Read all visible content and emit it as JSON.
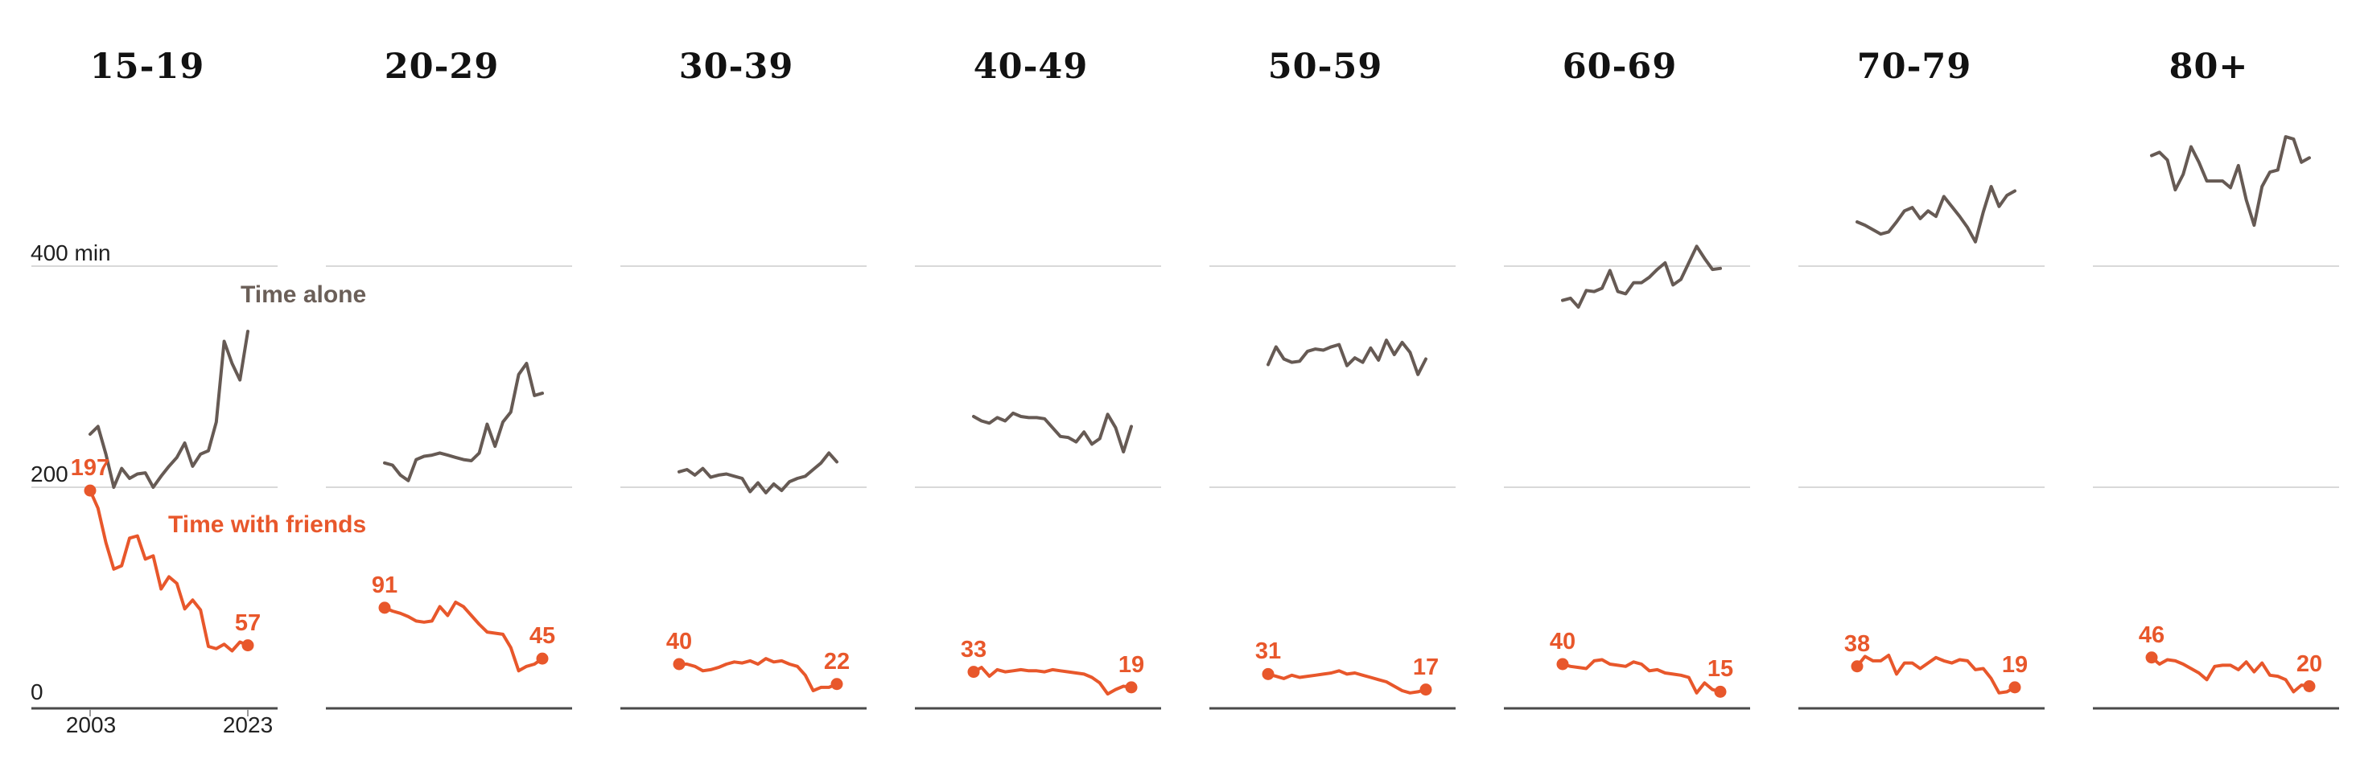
{
  "chart_data": {
    "type": "line",
    "layout_hint": "8 small-multiple panels by age group, shared y scale 0-400+ min, gridlines at 0/200/400, axis labels only on first panel, legend as inline series labels on first panel",
    "x": [
      2003,
      2004,
      2005,
      2006,
      2007,
      2008,
      2009,
      2010,
      2011,
      2012,
      2013,
      2014,
      2015,
      2016,
      2017,
      2018,
      2019,
      2020,
      2021,
      2022,
      2023
    ],
    "x_axis": {
      "start_label": "2003",
      "end_label": "2023"
    },
    "y_axis": {
      "top_label": "400 min",
      "mid_label": "200",
      "zero_label": "0",
      "gridlines": [
        400,
        200,
        0
      ],
      "ylim": [
        0,
        560
      ]
    },
    "series_labels": {
      "alone": "Time alone",
      "friends": "Time with friends"
    },
    "colors": {
      "friends": "#e8572b",
      "alone_line": "#665a54",
      "alone_label_text": "#6b5f58",
      "gridline": "#d9d9d9",
      "axis_line": "#4a4a4a",
      "tick": "#9a9a9a",
      "text": "#1f1f1f"
    },
    "panels": [
      {
        "title": "15-19",
        "alone": [
          248,
          255,
          230,
          200,
          217,
          208,
          212,
          213,
          200,
          210,
          219,
          227,
          240,
          219,
          230,
          233,
          259,
          332,
          312,
          297,
          341
        ],
        "friends": [
          197,
          181,
          150,
          126,
          129,
          154,
          156,
          135,
          138,
          108,
          119,
          113,
          90,
          98,
          89,
          56,
          54,
          58,
          52,
          60,
          57
        ],
        "friends_start_label": "197",
        "friends_end_label": "57"
      },
      {
        "title": "20-29",
        "alone": [
          222,
          220,
          211,
          206,
          225,
          228,
          229,
          231,
          229,
          227,
          225,
          224,
          231,
          257,
          237,
          259,
          268,
          302,
          312,
          283,
          285
        ],
        "friends": [
          91,
          88,
          86,
          83,
          79,
          78,
          79,
          92,
          84,
          96,
          92,
          84,
          76,
          69,
          68,
          67,
          55,
          34,
          38,
          40,
          45
        ],
        "friends_start_label": "91",
        "friends_end_label": "45"
      },
      {
        "title": "30-39",
        "alone": [
          214,
          216,
          211,
          217,
          209,
          211,
          212,
          210,
          208,
          196,
          204,
          195,
          203,
          197,
          205,
          208,
          210,
          216,
          222,
          231,
          223
        ],
        "friends": [
          40,
          40,
          38,
          34,
          35,
          37,
          40,
          42,
          41,
          43,
          40,
          45,
          42,
          43,
          40,
          38,
          30,
          16,
          19,
          19,
          22
        ],
        "friends_start_label": "40",
        "friends_end_label": "22"
      },
      {
        "title": "40-49",
        "alone": [
          264,
          260,
          258,
          263,
          260,
          267,
          264,
          263,
          263,
          262,
          254,
          246,
          245,
          241,
          250,
          239,
          244,
          266,
          254,
          232,
          255
        ],
        "friends": [
          33,
          37,
          29,
          35,
          33,
          34,
          35,
          34,
          34,
          33,
          35,
          34,
          33,
          32,
          31,
          28,
          23,
          13,
          17,
          20,
          19
        ],
        "friends_start_label": "33",
        "friends_end_label": "19"
      },
      {
        "title": "50-59",
        "alone": [
          311,
          327,
          316,
          313,
          314,
          323,
          325,
          324,
          327,
          329,
          310,
          317,
          313,
          326,
          315,
          333,
          320,
          331,
          322,
          302,
          316
        ],
        "friends": [
          31,
          29,
          27,
          30,
          28,
          29,
          30,
          31,
          32,
          34,
          31,
          32,
          30,
          28,
          26,
          24,
          20,
          16,
          14,
          15,
          17
        ],
        "friends_start_label": "31",
        "friends_end_label": "17"
      },
      {
        "title": "60-69",
        "alone": [
          369,
          371,
          363,
          378,
          377,
          380,
          396,
          377,
          375,
          385,
          385,
          390,
          397,
          403,
          383,
          388,
          403,
          418,
          407,
          397,
          398
        ],
        "friends": [
          40,
          38,
          37,
          36,
          43,
          44,
          40,
          39,
          38,
          42,
          40,
          34,
          35,
          32,
          31,
          30,
          28,
          14,
          23,
          17,
          15
        ],
        "friends_start_label": "40",
        "friends_end_label": "15"
      },
      {
        "title": "70-79",
        "alone": [
          440,
          437,
          433,
          429,
          431,
          440,
          450,
          453,
          443,
          450,
          445,
          463,
          454,
          445,
          435,
          422,
          449,
          472,
          454,
          464,
          468
        ],
        "friends": [
          38,
          47,
          43,
          43,
          48,
          31,
          41,
          41,
          36,
          41,
          46,
          43,
          41,
          44,
          43,
          35,
          36,
          27,
          14,
          15,
          19
        ],
        "friends_start_label": "38",
        "friends_end_label": "19"
      },
      {
        "title": "80+",
        "alone": [
          500,
          503,
          496,
          469,
          483,
          508,
          494,
          477,
          477,
          477,
          471,
          491,
          460,
          437,
          472,
          485,
          487,
          517,
          515,
          494,
          498
        ],
        "friends": [
          46,
          40,
          44,
          43,
          40,
          36,
          32,
          26,
          38,
          39,
          39,
          35,
          42,
          33,
          41,
          30,
          29,
          26,
          15,
          21,
          20
        ],
        "friends_start_label": "46",
        "friends_end_label": "20"
      }
    ]
  }
}
